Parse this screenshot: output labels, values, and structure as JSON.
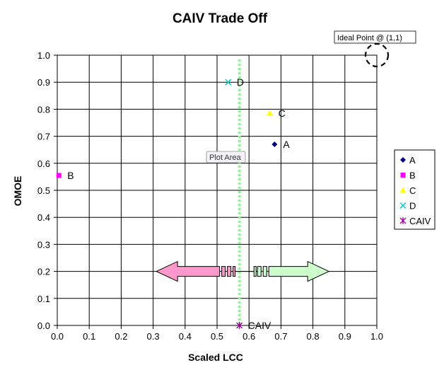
{
  "chart_data": {
    "type": "scatter",
    "title": "CAIV Trade Off",
    "xlabel": "Scaled LCC",
    "ylabel": "OMOE",
    "xlim": [
      0,
      1
    ],
    "ylim": [
      0,
      1
    ],
    "xticks": [
      "0.0",
      "0.1",
      "0.2",
      "0.3",
      "0.4",
      "0.5",
      "0.6",
      "0.7",
      "0.8",
      "0.9",
      "1.0"
    ],
    "yticks": [
      "0.0",
      "0.1",
      "0.2",
      "0.3",
      "0.4",
      "0.5",
      "0.6",
      "0.7",
      "0.8",
      "0.9",
      "1.0"
    ],
    "grid": true,
    "legend_position": "right",
    "series": [
      {
        "name": "A",
        "label": "A",
        "color": "#000080",
        "marker": "diamond",
        "x": 0.68,
        "y": 0.67
      },
      {
        "name": "B",
        "label": "B",
        "color": "#ff00ff",
        "marker": "square",
        "x": 0.005,
        "y": 0.555
      },
      {
        "name": "C",
        "label": "C",
        "color": "#ffff00",
        "marker": "triangle",
        "x": 0.665,
        "y": 0.785
      },
      {
        "name": "D",
        "label": "D",
        "color": "#00cccc",
        "marker": "x",
        "x": 0.535,
        "y": 0.9
      },
      {
        "name": "CAIV",
        "label": "CAIV",
        "color": "#990099",
        "marker": "star",
        "x": 0.57,
        "y": 0.0
      }
    ],
    "caiv_line": {
      "x": 0.57,
      "color": "#99ee99"
    },
    "arrows": {
      "left": {
        "from": 0.57,
        "to": 0.31,
        "y": 0.2,
        "color": "#ff99cc"
      },
      "right": {
        "from": 0.62,
        "to": 0.85,
        "y": 0.2,
        "color": "#ccffcc"
      }
    },
    "annotations": {
      "ideal_point": {
        "text": "Ideal Point @ (1,1)",
        "x": 1.0,
        "y": 1.0
      },
      "plot_area": {
        "text": "Plot Area"
      }
    }
  }
}
